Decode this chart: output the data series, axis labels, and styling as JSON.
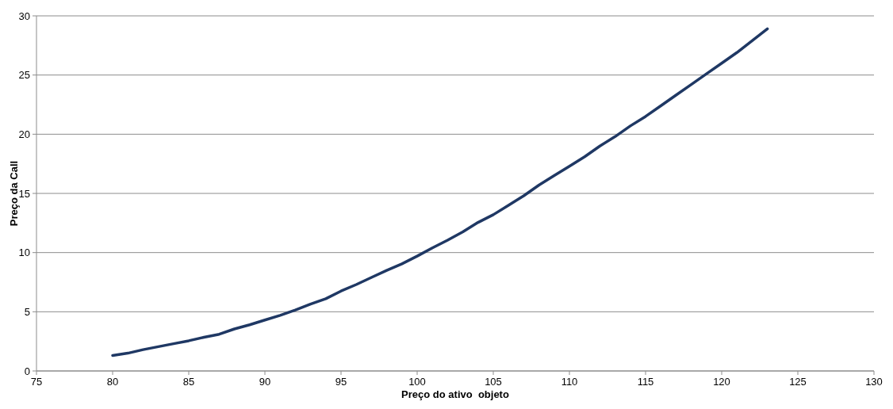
{
  "chart_data": {
    "type": "line",
    "xlabel": "Preço do ativo  objeto",
    "ylabel": "Preço da Call",
    "x": [
      80,
      81,
      82,
      83,
      84,
      85,
      86,
      87,
      88,
      89,
      90,
      91,
      92,
      93,
      94,
      95,
      96,
      97,
      98,
      99,
      100,
      101,
      102,
      103,
      104,
      105,
      106,
      107,
      108,
      109,
      110,
      111,
      112,
      113,
      114,
      115,
      116,
      117,
      118,
      119,
      120,
      121,
      122,
      123
    ],
    "series": [
      {
        "color": "#1f3864",
        "values": [
          1.3,
          1.5,
          1.8,
          2.05,
          2.3,
          2.55,
          2.85,
          3.1,
          3.55,
          3.9,
          4.3,
          4.7,
          5.15,
          5.65,
          6.1,
          6.75,
          7.3,
          7.9,
          8.5,
          9.05,
          9.7,
          10.4,
          11.05,
          11.75,
          12.55,
          13.2,
          14.0,
          14.8,
          15.7,
          16.5,
          17.3,
          18.1,
          19.0,
          19.8,
          20.7,
          21.5,
          22.4,
          23.3,
          24.2,
          25.1,
          26.0,
          26.9,
          27.9,
          28.9
        ]
      }
    ],
    "xlim": [
      75,
      130
    ],
    "xticks": [
      75,
      80,
      85,
      90,
      95,
      100,
      105,
      110,
      115,
      120,
      125,
      130
    ],
    "ylim": [
      0,
      30
    ],
    "yticks": [
      0,
      5,
      10,
      15,
      20,
      25,
      30
    ],
    "grid": "y",
    "line_style": "solid",
    "marker": "none"
  }
}
